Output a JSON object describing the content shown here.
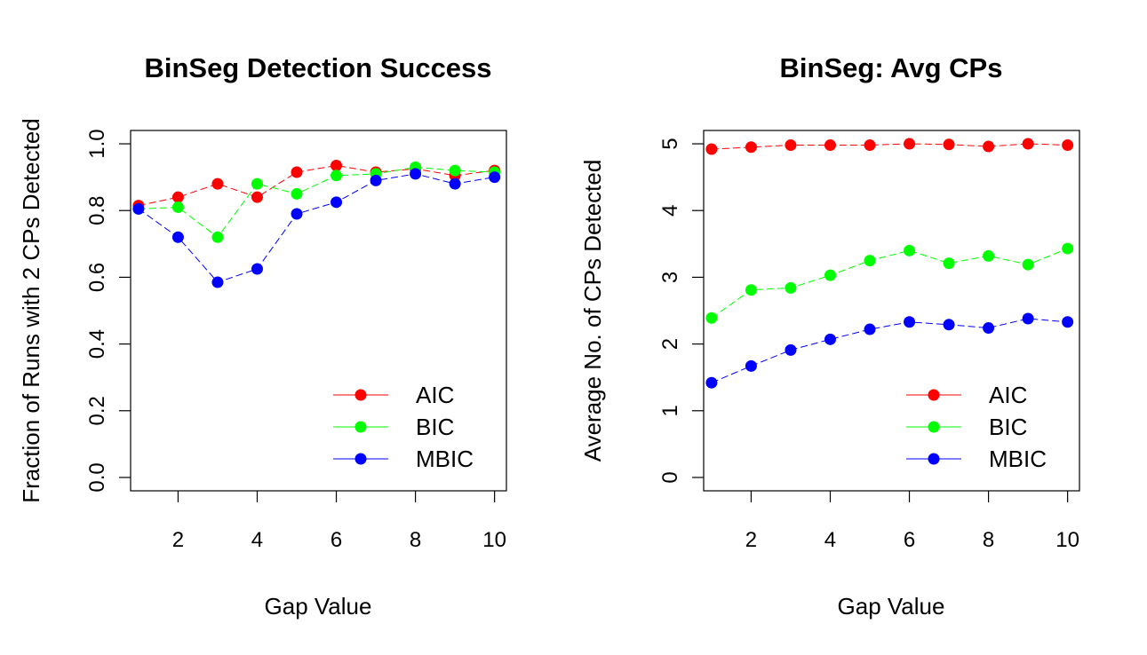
{
  "chart_data": [
    {
      "type": "line",
      "title": "BinSeg Detection Success",
      "xlabel": "Gap Value",
      "ylabel": "Fraction of Runs with 2 CPs Detected",
      "x": [
        1,
        2,
        3,
        4,
        5,
        6,
        7,
        8,
        9,
        10
      ],
      "xlim": [
        0.8,
        10.3
      ],
      "ylim": [
        -0.04,
        1.04
      ],
      "xticks": [
        "2",
        "4",
        "6",
        "8",
        "10"
      ],
      "yticks": [
        "0.0",
        "0.2",
        "0.4",
        "0.6",
        "0.8",
        "1.0"
      ],
      "series": [
        {
          "name": "AIC",
          "color": "#ff0000",
          "values": [
            0.815,
            0.84,
            0.88,
            0.84,
            0.915,
            0.935,
            0.915,
            0.925,
            0.905,
            0.92
          ]
        },
        {
          "name": "BIC",
          "color": "#00ff00",
          "values": [
            0.805,
            0.81,
            0.72,
            0.88,
            0.85,
            0.905,
            0.91,
            0.93,
            0.92,
            0.915
          ]
        },
        {
          "name": "MBIC",
          "color": "#0000ff",
          "values": [
            0.805,
            0.72,
            0.585,
            0.625,
            0.79,
            0.825,
            0.89,
            0.91,
            0.88,
            0.9
          ]
        }
      ],
      "legend": "bottom-right",
      "grid": false
    },
    {
      "type": "line",
      "title": "BinSeg: Avg CPs",
      "xlabel": "Gap Value",
      "ylabel": "Average No. of CPs Detected",
      "x": [
        1,
        2,
        3,
        4,
        5,
        6,
        7,
        8,
        9,
        10
      ],
      "xlim": [
        0.8,
        10.3
      ],
      "ylim": [
        -0.2,
        5.2
      ],
      "xticks": [
        "2",
        "4",
        "6",
        "8",
        "10"
      ],
      "yticks": [
        "0",
        "1",
        "2",
        "3",
        "4",
        "5"
      ],
      "series": [
        {
          "name": "AIC",
          "color": "#ff0000",
          "values": [
            4.92,
            4.95,
            4.98,
            4.98,
            4.98,
            5.0,
            4.99,
            4.96,
            5.0,
            4.98
          ]
        },
        {
          "name": "BIC",
          "color": "#00ff00",
          "values": [
            2.39,
            2.81,
            2.84,
            3.03,
            3.25,
            3.4,
            3.21,
            3.32,
            3.19,
            3.43
          ]
        },
        {
          "name": "MBIC",
          "color": "#0000ff",
          "values": [
            1.42,
            1.67,
            1.91,
            2.07,
            2.22,
            2.33,
            2.29,
            2.24,
            2.38,
            2.33
          ]
        }
      ],
      "legend": "bottom-right",
      "grid": false
    }
  ]
}
